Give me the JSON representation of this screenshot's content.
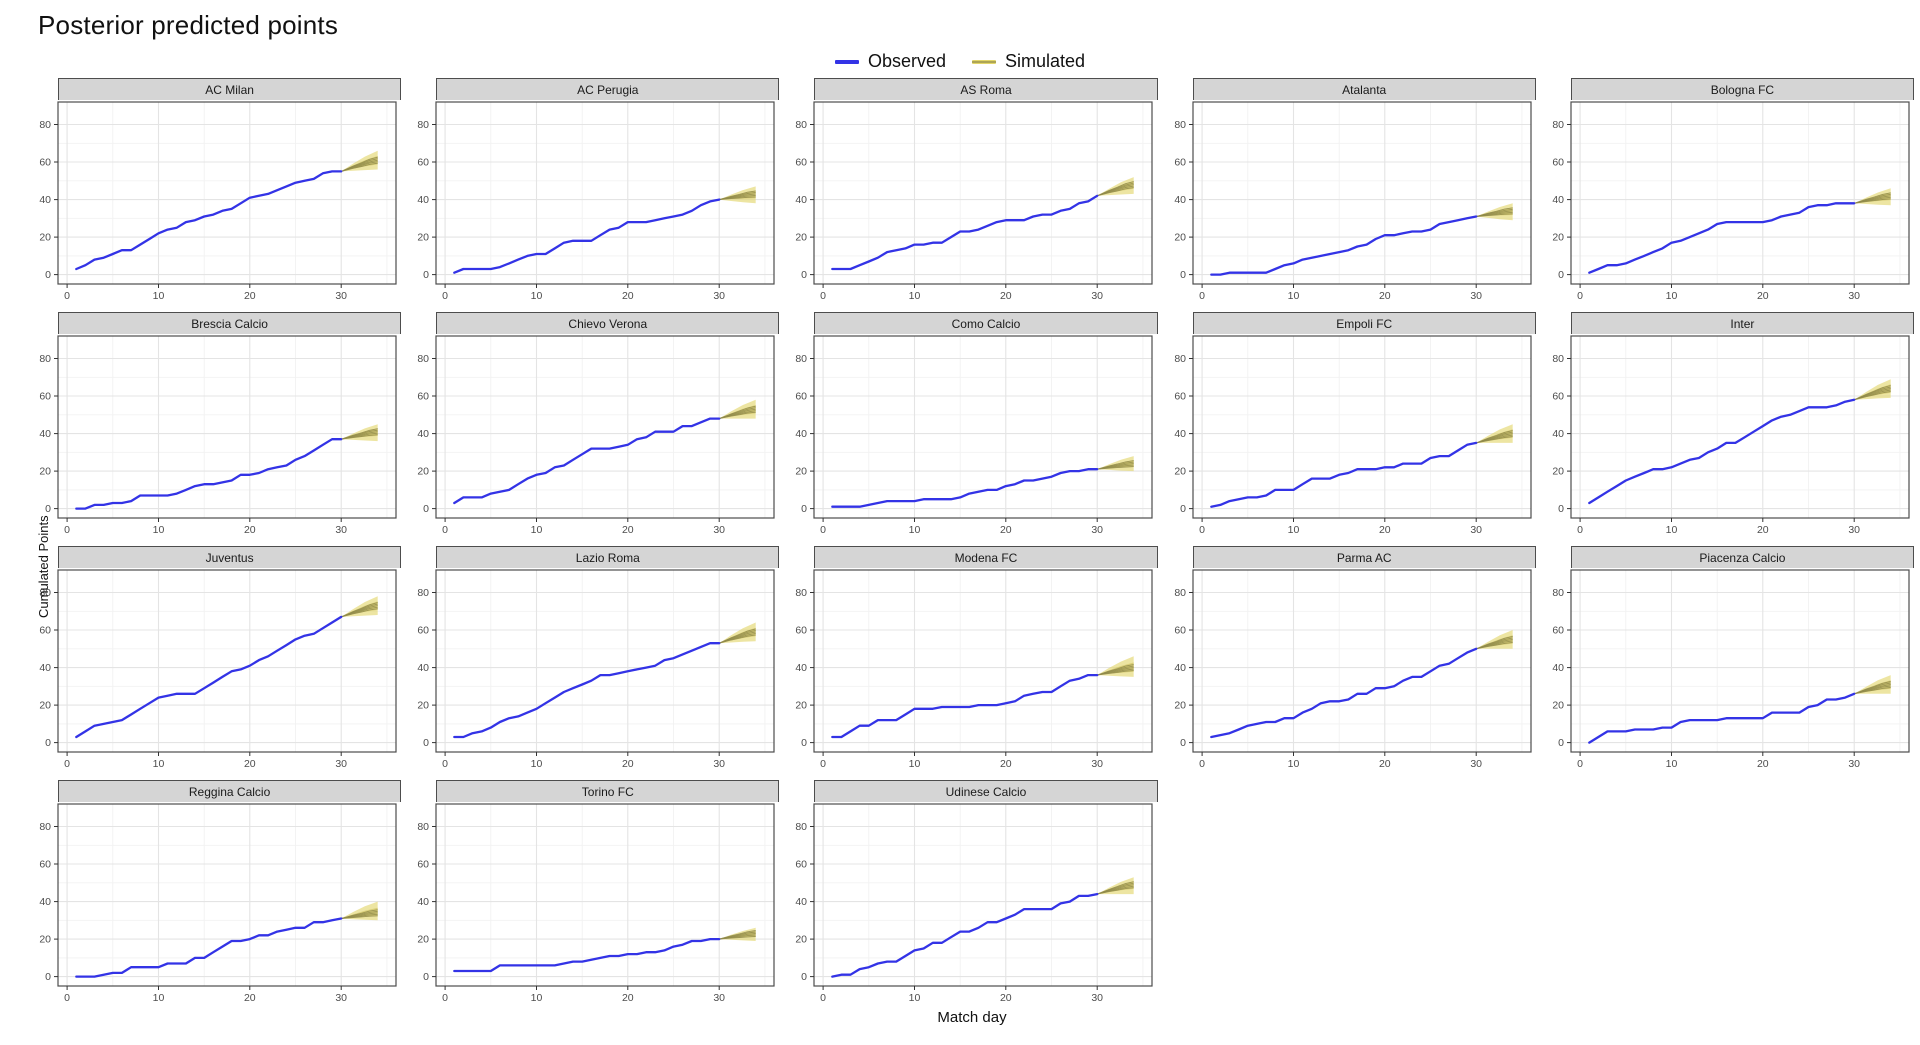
{
  "title": "Posterior predicted points",
  "legend": {
    "observed_label": "Observed",
    "simulated_label": "Simulated"
  },
  "axes": {
    "x_title": "Match day",
    "y_title": "Cumulated Points",
    "x_ticks": [
      0,
      10,
      20,
      30
    ],
    "x_minor_ticks": [
      5,
      15,
      25,
      35
    ],
    "y_ticks": [
      0,
      20,
      40,
      60,
      80
    ],
    "y_minor_ticks": [
      10,
      30,
      50,
      70
    ],
    "x_range": [
      -1,
      36
    ],
    "y_range": [
      -5,
      92
    ]
  },
  "colors": {
    "observed": "#3333E6",
    "sim_band_outer": "#E2D569",
    "sim_band_inner": "#C9BC55",
    "sim_line": "#8F894A",
    "strip_bg": "#D5D5D5",
    "panel_border": "#4d4d4d",
    "grid_major": "#E4E4E4",
    "grid_minor": "#F2F2F2",
    "tick_label": "#4D4D4D",
    "tick_mark": "#333333"
  },
  "chart_data": {
    "type": "line",
    "x_unit": "match day (1-30 observed, 30-34 simulated fan)",
    "facets": [
      {
        "team": "AC Milan",
        "observed": [
          3,
          5,
          8,
          9,
          11,
          13,
          13,
          16,
          19,
          22,
          24,
          25,
          28,
          29,
          31,
          32,
          34,
          35,
          38,
          41,
          42,
          43,
          45,
          47,
          49,
          50,
          51,
          54,
          55,
          55
        ],
        "sim_low": 56,
        "sim_mid": 61,
        "sim_high": 66
      },
      {
        "team": "AC Perugia",
        "observed": [
          1,
          3,
          3,
          3,
          3,
          4,
          6,
          8,
          10,
          11,
          11,
          14,
          17,
          18,
          18,
          18,
          21,
          24,
          25,
          28,
          28,
          28,
          29,
          30,
          31,
          32,
          34,
          37,
          39,
          40
        ],
        "sim_low": 38,
        "sim_mid": 43,
        "sim_high": 47
      },
      {
        "team": "AS Roma",
        "observed": [
          3,
          3,
          3,
          5,
          7,
          9,
          12,
          13,
          14,
          16,
          16,
          17,
          17,
          20,
          23,
          23,
          24,
          26,
          28,
          29,
          29,
          29,
          31,
          32,
          32,
          34,
          35,
          38,
          39,
          42
        ],
        "sim_low": 43,
        "sim_mid": 48,
        "sim_high": 52
      },
      {
        "team": "Atalanta",
        "observed": [
          0,
          0,
          1,
          1,
          1,
          1,
          1,
          3,
          5,
          6,
          8,
          9,
          10,
          11,
          12,
          13,
          15,
          16,
          19,
          21,
          21,
          22,
          23,
          23,
          24,
          27,
          28,
          29,
          30,
          31
        ],
        "sim_low": 29,
        "sim_mid": 34,
        "sim_high": 38
      },
      {
        "team": "Bologna FC",
        "observed": [
          1,
          3,
          5,
          5,
          6,
          8,
          10,
          12,
          14,
          17,
          18,
          20,
          22,
          24,
          27,
          28,
          28,
          28,
          28,
          28,
          29,
          31,
          32,
          33,
          36,
          37,
          37,
          38,
          38,
          38
        ],
        "sim_low": 37,
        "sim_mid": 42,
        "sim_high": 46
      },
      {
        "team": "Brescia Calcio",
        "observed": [
          0,
          0,
          2,
          2,
          3,
          3,
          4,
          7,
          7,
          7,
          7,
          8,
          10,
          12,
          13,
          13,
          14,
          15,
          18,
          18,
          19,
          21,
          22,
          23,
          26,
          28,
          31,
          34,
          37,
          37
        ],
        "sim_low": 36,
        "sim_mid": 41,
        "sim_high": 45
      },
      {
        "team": "Chievo Verona",
        "observed": [
          3,
          6,
          6,
          6,
          8,
          9,
          10,
          13,
          16,
          18,
          19,
          22,
          23,
          26,
          29,
          32,
          32,
          32,
          33,
          34,
          37,
          38,
          41,
          41,
          41,
          44,
          44,
          46,
          48,
          48
        ],
        "sim_low": 48,
        "sim_mid": 53,
        "sim_high": 58
      },
      {
        "team": "Como Calcio",
        "observed": [
          1,
          1,
          1,
          1,
          2,
          3,
          4,
          4,
          4,
          4,
          5,
          5,
          5,
          5,
          6,
          8,
          9,
          10,
          10,
          12,
          13,
          15,
          15,
          16,
          17,
          19,
          20,
          20,
          21,
          21
        ],
        "sim_low": 20,
        "sim_mid": 24,
        "sim_high": 28
      },
      {
        "team": "Empoli FC",
        "observed": [
          1,
          2,
          4,
          5,
          6,
          6,
          7,
          10,
          10,
          10,
          13,
          16,
          16,
          16,
          18,
          19,
          21,
          21,
          21,
          22,
          22,
          24,
          24,
          24,
          27,
          28,
          28,
          31,
          34,
          35
        ],
        "sim_low": 35,
        "sim_mid": 40,
        "sim_high": 45
      },
      {
        "team": "Inter",
        "observed": [
          3,
          6,
          9,
          12,
          15,
          17,
          19,
          21,
          21,
          22,
          24,
          26,
          27,
          30,
          32,
          35,
          35,
          38,
          41,
          44,
          47,
          49,
          50,
          52,
          54,
          54,
          54,
          55,
          57,
          58
        ],
        "sim_low": 59,
        "sim_mid": 64,
        "sim_high": 69
      },
      {
        "team": "Juventus",
        "observed": [
          3,
          6,
          9,
          10,
          11,
          12,
          15,
          18,
          21,
          24,
          25,
          26,
          26,
          26,
          29,
          32,
          35,
          38,
          39,
          41,
          44,
          46,
          49,
          52,
          55,
          57,
          58,
          61,
          64,
          67
        ],
        "sim_low": 68,
        "sim_mid": 73,
        "sim_high": 78
      },
      {
        "team": "Lazio Roma",
        "observed": [
          3,
          3,
          5,
          6,
          8,
          11,
          13,
          14,
          16,
          18,
          21,
          24,
          27,
          29,
          31,
          33,
          36,
          36,
          37,
          38,
          39,
          40,
          41,
          44,
          45,
          47,
          49,
          51,
          53,
          53
        ],
        "sim_low": 54,
        "sim_mid": 59,
        "sim_high": 64
      },
      {
        "team": "Modena FC",
        "observed": [
          3,
          3,
          6,
          9,
          9,
          12,
          12,
          12,
          15,
          18,
          18,
          18,
          19,
          19,
          19,
          19,
          20,
          20,
          20,
          21,
          22,
          25,
          26,
          27,
          27,
          30,
          33,
          34,
          36,
          36
        ],
        "sim_low": 35,
        "sim_mid": 40,
        "sim_high": 46
      },
      {
        "team": "Parma AC",
        "observed": [
          3,
          4,
          5,
          7,
          9,
          10,
          11,
          11,
          13,
          13,
          16,
          18,
          21,
          22,
          22,
          23,
          26,
          26,
          29,
          29,
          30,
          33,
          35,
          35,
          38,
          41,
          42,
          45,
          48,
          50
        ],
        "sim_low": 50,
        "sim_mid": 55,
        "sim_high": 60
      },
      {
        "team": "Piacenza Calcio",
        "observed": [
          0,
          3,
          6,
          6,
          6,
          7,
          7,
          7,
          8,
          8,
          11,
          12,
          12,
          12,
          12,
          13,
          13,
          13,
          13,
          13,
          16,
          16,
          16,
          16,
          19,
          20,
          23,
          23,
          24,
          26
        ],
        "sim_low": 26,
        "sim_mid": 31,
        "sim_high": 36
      },
      {
        "team": "Reggina Calcio",
        "observed": [
          0,
          0,
          0,
          1,
          2,
          2,
          5,
          5,
          5,
          5,
          7,
          7,
          7,
          10,
          10,
          13,
          16,
          19,
          19,
          20,
          22,
          22,
          24,
          25,
          26,
          26,
          29,
          29,
          30,
          31
        ],
        "sim_low": 30,
        "sim_mid": 34,
        "sim_high": 40
      },
      {
        "team": "Torino FC",
        "observed": [
          3,
          3,
          3,
          3,
          3,
          6,
          6,
          6,
          6,
          6,
          6,
          6,
          7,
          8,
          8,
          9,
          10,
          11,
          11,
          12,
          12,
          13,
          13,
          14,
          16,
          17,
          19,
          19,
          20,
          20
        ],
        "sim_low": 19,
        "sim_mid": 23,
        "sim_high": 26
      },
      {
        "team": "Udinese Calcio",
        "observed": [
          0,
          1,
          1,
          4,
          5,
          7,
          8,
          8,
          11,
          14,
          15,
          18,
          18,
          21,
          24,
          24,
          26,
          29,
          29,
          31,
          33,
          36,
          36,
          36,
          36,
          39,
          40,
          43,
          43,
          44
        ],
        "sim_low": 44,
        "sim_mid": 49,
        "sim_high": 53
      }
    ],
    "observed_days": [
      1,
      30
    ],
    "simulated_days": [
      30,
      34
    ],
    "title": "Posterior predicted points",
    "xlabel": "Match day",
    "ylabel": "Cumulated Points",
    "legend_position": "top-center",
    "grid": true
  }
}
